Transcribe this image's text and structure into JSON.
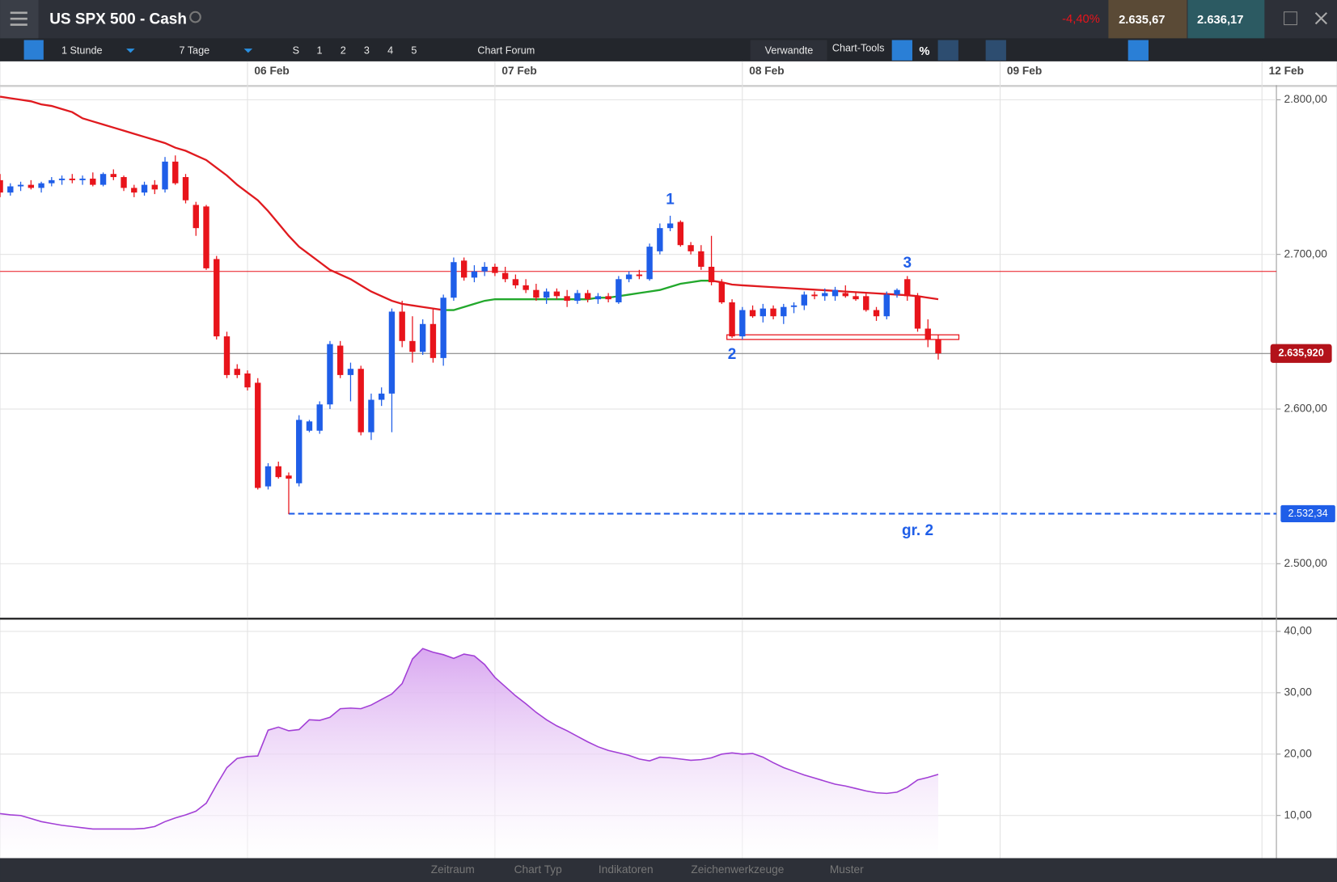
{
  "header": {
    "title": "US SPX 500 - Cash",
    "change": "-4,40%",
    "bid": "2.635,67",
    "ask": "2.636,17"
  },
  "toolbar": {
    "interval": "1 Stunde",
    "range": "7 Tage",
    "buttons": [
      "S",
      "1",
      "2",
      "3",
      "4",
      "5"
    ],
    "forum": "Chart Forum",
    "related": "Verwandte",
    "tools": "Chart-Tools",
    "percent": "%"
  },
  "bottom_bar": {
    "tabs": [
      "Zeitraum",
      "Chart Typ",
      "Indikatoren",
      "Zeichenwerkzeuge",
      "Muster"
    ]
  },
  "chart_data": {
    "type": "candlestick",
    "xlim": [
      0,
      123.8
    ],
    "xticks": [
      {
        "value": 24,
        "label": "06 Feb"
      },
      {
        "value": 48,
        "label": "07 Feb"
      },
      {
        "value": 72,
        "label": "08 Feb"
      },
      {
        "value": 97,
        "label": "09 Feb"
      },
      {
        "value": 122.4,
        "label": "12 Feb"
      }
    ],
    "ylim": [
      2465,
      2809.4
    ],
    "yticks": [
      {
        "value": 2500,
        "label": "2.500,00"
      },
      {
        "value": 2600,
        "label": "2.600,00"
      },
      {
        "value": 2700,
        "label": "2.700,00"
      },
      {
        "value": 2800,
        "label": "2.800,00"
      }
    ],
    "up_color": "#1f5ee8",
    "down_color": "#e8141b",
    "x": [
      0,
      1,
      2,
      3,
      4,
      5,
      6,
      7,
      8,
      9,
      10,
      11,
      12,
      13,
      14,
      15,
      16,
      17,
      18,
      19,
      20,
      21,
      22,
      23,
      24,
      25,
      26,
      27,
      28,
      29,
      30,
      31,
      32,
      33,
      34,
      35,
      36,
      37,
      38,
      39,
      40,
      41,
      42,
      43,
      44,
      45,
      46,
      47,
      48,
      49,
      50,
      51,
      52,
      53,
      54,
      55,
      56,
      57,
      58,
      59,
      60,
      61,
      62,
      63,
      64,
      65,
      66,
      67,
      68,
      69,
      70,
      71,
      72,
      73,
      74,
      75,
      76,
      77,
      78,
      79,
      80,
      81,
      82,
      83,
      84,
      85,
      86,
      87,
      88,
      89,
      90,
      91
    ],
    "candles": [
      [
        2748,
        2752,
        2737,
        2740
      ],
      [
        2740,
        2746,
        2738,
        2744
      ],
      [
        2744,
        2747,
        2741,
        2745
      ],
      [
        2745,
        2748,
        2742,
        2743
      ],
      [
        2743,
        2747,
        2740,
        2746
      ],
      [
        2746,
        2750,
        2744,
        2748
      ],
      [
        2748,
        2751,
        2745,
        2749
      ],
      [
        2749,
        2752,
        2746,
        2748
      ],
      [
        2748,
        2751,
        2745,
        2749
      ],
      [
        2749,
        2753,
        2744,
        2745
      ],
      [
        2745,
        2753,
        2744,
        2752
      ],
      [
        2752,
        2755,
        2748,
        2750
      ],
      [
        2750,
        2751,
        2741,
        2743
      ],
      [
        2743,
        2745,
        2737,
        2740
      ],
      [
        2740,
        2747,
        2738,
        2745
      ],
      [
        2745,
        2748,
        2739,
        2742
      ],
      [
        2742,
        2763,
        2740,
        2760
      ],
      [
        2760,
        2764,
        2745,
        2746
      ],
      [
        2750,
        2752,
        2733,
        2735
      ],
      [
        2732,
        2734,
        2712,
        2717
      ],
      [
        2731,
        2732,
        2690,
        2691
      ],
      [
        2697,
        2699,
        2645,
        2647
      ],
      [
        2647,
        2650,
        2620,
        2622
      ],
      [
        2626,
        2629,
        2620,
        2622
      ],
      [
        2623,
        2625,
        2612,
        2614
      ],
      [
        2617,
        2620,
        2548,
        2549
      ],
      [
        2550,
        2565,
        2548,
        2563
      ],
      [
        2563,
        2566,
        2555,
        2556
      ],
      [
        2557,
        2559,
        2532,
        2555
      ],
      [
        2552,
        2596,
        2550,
        2593
      ],
      [
        2586,
        2593,
        2585,
        2592
      ],
      [
        2586,
        2605,
        2584,
        2603
      ],
      [
        2603,
        2644,
        2600,
        2642
      ],
      [
        2641,
        2644,
        2620,
        2622
      ],
      [
        2622,
        2630,
        2605,
        2626
      ],
      [
        2626,
        2628,
        2583,
        2585
      ],
      [
        2585,
        2610,
        2580,
        2606
      ],
      [
        2606,
        2614,
        2602,
        2610
      ],
      [
        2610,
        2665,
        2585,
        2663
      ],
      [
        2663,
        2670,
        2640,
        2644
      ],
      [
        2644,
        2660,
        2630,
        2637
      ],
      [
        2637,
        2658,
        2635,
        2655
      ],
      [
        2655,
        2665,
        2630,
        2633
      ],
      [
        2633,
        2674,
        2628,
        2672
      ],
      [
        2672,
        2698,
        2670,
        2695
      ],
      [
        2696,
        2698,
        2683,
        2685
      ],
      [
        2685,
        2693,
        2682,
        2689
      ],
      [
        2689,
        2695,
        2686,
        2692
      ],
      [
        2692,
        2694,
        2686,
        2688
      ],
      [
        2688,
        2692,
        2682,
        2684
      ],
      [
        2684,
        2687,
        2678,
        2680
      ],
      [
        2680,
        2684,
        2675,
        2677
      ],
      [
        2677,
        2681,
        2670,
        2672
      ],
      [
        2672,
        2678,
        2668,
        2676
      ],
      [
        2676,
        2678,
        2671,
        2673
      ],
      [
        2673,
        2677,
        2666,
        2670
      ],
      [
        2670,
        2677,
        2668,
        2675
      ],
      [
        2675,
        2677,
        2669,
        2671
      ],
      [
        2671,
        2675,
        2668,
        2673
      ],
      [
        2673,
        2675,
        2669,
        2671
      ],
      [
        2669,
        2686,
        2668,
        2684
      ],
      [
        2684,
        2689,
        2682,
        2687
      ],
      [
        2687,
        2690,
        2684,
        2686
      ],
      [
        2684,
        2707,
        2683,
        2705
      ],
      [
        2702,
        2720,
        2700,
        2717
      ],
      [
        2717,
        2725,
        2715,
        2720
      ],
      [
        2721,
        2722,
        2705,
        2706
      ],
      [
        2706,
        2708,
        2700,
        2702
      ],
      [
        2702,
        2706,
        2690,
        2692
      ],
      [
        2692,
        2712,
        2680,
        2682
      ],
      [
        2682,
        2684,
        2668,
        2669
      ],
      [
        2669,
        2671,
        2646,
        2647
      ],
      [
        2647,
        2666,
        2645,
        2664
      ],
      [
        2664,
        2667,
        2659,
        2660
      ],
      [
        2660,
        2668,
        2656,
        2665
      ],
      [
        2665,
        2667,
        2658,
        2660
      ],
      [
        2660,
        2668,
        2655,
        2666
      ],
      [
        2666,
        2669,
        2662,
        2667
      ],
      [
        2667,
        2676,
        2664,
        2674
      ],
      [
        2674,
        2676,
        2671,
        2673
      ],
      [
        2673,
        2678,
        2670,
        2675
      ],
      [
        2673,
        2679,
        2670,
        2677
      ],
      [
        2675,
        2680,
        2672,
        2673
      ],
      [
        2673,
        2676,
        2670,
        2671
      ],
      [
        2673,
        2675,
        2663,
        2664
      ],
      [
        2664,
        2666,
        2657,
        2660
      ],
      [
        2660,
        2676,
        2658,
        2674
      ],
      [
        2674,
        2678,
        2672,
        2677
      ],
      [
        2684,
        2686,
        2670,
        2673
      ],
      [
        2673,
        2675,
        2650,
        2652
      ],
      [
        2652,
        2658,
        2640,
        2645
      ],
      [
        2645,
        2648,
        2632,
        2636
      ]
    ],
    "moving_average": {
      "rising_color": "#22a82c",
      "falling_color": "#e01a1f",
      "values": [
        2802,
        2801,
        2800,
        2799,
        2797,
        2796,
        2794,
        2792,
        2788,
        2786,
        2784,
        2782,
        2780,
        2778,
        2776,
        2774,
        2772,
        2769,
        2767,
        2764,
        2761,
        2756,
        2751,
        2745,
        2740,
        2735,
        2728,
        2720,
        2712,
        2705,
        2700,
        2695,
        2690,
        2687,
        2684,
        2680,
        2676,
        2673,
        2670,
        2668,
        2667,
        2666,
        2665,
        2664,
        2664,
        2666,
        2668,
        2670,
        2671,
        2671,
        2671,
        2671,
        2671,
        2671,
        2671,
        2671,
        2671,
        2671,
        2672,
        2672,
        2673,
        2674,
        2675,
        2676,
        2677,
        2679,
        2681,
        2682,
        2683,
        2683,
        2682,
        2680.5,
        2680,
        2679.6,
        2679.2,
        2678.8,
        2678.4,
        2678,
        2677.6,
        2677.2,
        2676.8,
        2676.4,
        2676,
        2675.6,
        2675.2,
        2674.8,
        2674.4,
        2674,
        2673.6,
        2673,
        2672,
        2671
      ]
    },
    "levels": [
      {
        "value": 2689,
        "color": "#e8141b"
      },
      {
        "value": 2635.92,
        "color": "#777777"
      }
    ],
    "last_price": {
      "value": 2635.92,
      "label": "2.635,920",
      "color": "#b3121a"
    },
    "support": {
      "value": 2532.34,
      "label": "2.532,34",
      "start": 28,
      "color": "#1f5ee8"
    },
    "zone": {
      "x": [
        70.5,
        93
      ],
      "y": [
        2645,
        2648
      ],
      "color": "#e8141b"
    },
    "annotations": [
      {
        "text": "1",
        "x": 65,
        "y": 2735,
        "color": "#1f5ee8"
      },
      {
        "text": "2",
        "x": 71,
        "y": 2635,
        "color": "#1f5ee8"
      },
      {
        "text": "3",
        "x": 88,
        "y": 2694,
        "color": "#1f5ee8"
      },
      {
        "text": "gr. 2",
        "x": 89,
        "y": 2521,
        "color": "#1f5ee8"
      }
    ],
    "indicator": {
      "type": "area",
      "color": "#a23fd6",
      "ylim": [
        3.05,
        41.65
      ],
      "yticks": [
        {
          "value": 10,
          "label": "10,00"
        },
        {
          "value": 20,
          "label": "20,00"
        },
        {
          "value": 30,
          "label": "30,00"
        },
        {
          "value": 40,
          "label": "40,00"
        }
      ],
      "values": [
        10.3,
        10.1,
        10.0,
        9.5,
        9.0,
        8.7,
        8.4,
        8.2,
        8.0,
        7.8,
        7.8,
        7.8,
        7.8,
        7.8,
        7.9,
        8.2,
        9.0,
        9.6,
        10.1,
        10.7,
        12.0,
        15.0,
        17.8,
        19.3,
        19.6,
        19.7,
        23.9,
        24.4,
        23.8,
        24.0,
        25.6,
        25.5,
        26.0,
        27.4,
        27.5,
        27.4,
        28.0,
        28.9,
        29.8,
        31.5,
        35.5,
        37.2,
        36.6,
        36.2,
        35.6,
        36.3,
        36.0,
        34.6,
        32.5,
        31.0,
        29.5,
        28.2,
        26.8,
        25.6,
        24.6,
        23.8,
        22.9,
        22.0,
        21.2,
        20.6,
        20.2,
        19.8,
        19.2,
        18.9,
        19.5,
        19.4,
        19.2,
        19.0,
        19.1,
        19.4,
        20.0,
        20.2,
        20.0,
        20.1,
        19.5,
        18.6,
        17.8,
        17.2,
        16.6,
        16.1,
        15.6,
        15.1,
        14.8,
        14.4,
        14.0,
        13.7,
        13.6,
        13.8,
        14.6,
        15.8,
        16.2,
        16.7
      ]
    }
  }
}
